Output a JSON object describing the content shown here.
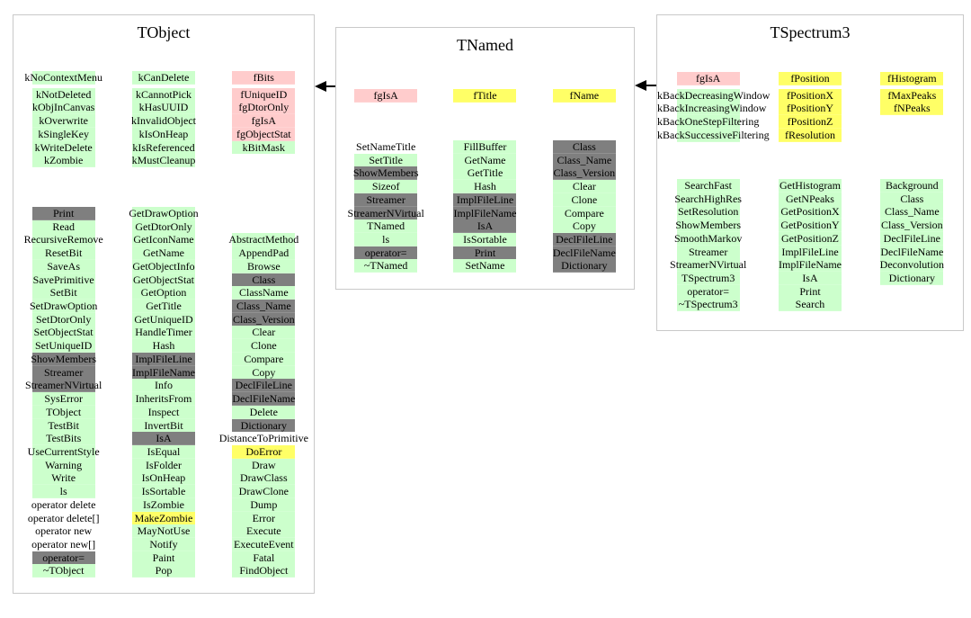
{
  "palette": {
    "g": "#ccffcc",
    "d": "#7f7f7f",
    "p": "#ffcccc",
    "y": "#ffff66",
    "w": "transparent"
  },
  "diagram": {
    "classes": [
      {
        "id": "tobject",
        "title": "TObject",
        "members_columns": [
          [
            [
              "kNoContextMenu",
              "g"
            ],
            [
              "kNotDeleted",
              "g"
            ],
            [
              "kObjInCanvas",
              "g"
            ],
            [
              "kOverwrite",
              "g"
            ],
            [
              "kSingleKey",
              "g"
            ],
            [
              "kWriteDelete",
              "g"
            ],
            [
              "kZombie",
              "g"
            ]
          ],
          [
            [
              "kCanDelete",
              "g"
            ],
            [
              "kCannotPick",
              "g"
            ],
            [
              "kHasUUID",
              "g"
            ],
            [
              "kInvalidObject",
              "g"
            ],
            [
              "kIsOnHeap",
              "g"
            ],
            [
              "kIsReferenced",
              "g"
            ],
            [
              "kMustCleanup",
              "g"
            ]
          ],
          [
            [
              "fBits",
              "p"
            ],
            [
              "fUniqueID",
              "p"
            ],
            [
              "fgDtorOnly",
              "p"
            ],
            [
              "fgIsA",
              "p"
            ],
            [
              "fgObjectStat",
              "p"
            ],
            [
              "kBitMask",
              "g"
            ]
          ]
        ],
        "methods_columns": [
          [
            [
              "Print",
              "d"
            ],
            [
              "Read",
              "g"
            ],
            [
              "RecursiveRemove",
              "g"
            ],
            [
              "ResetBit",
              "g"
            ],
            [
              "SaveAs",
              "g"
            ],
            [
              "SavePrimitive",
              "g"
            ],
            [
              "SetBit",
              "g"
            ],
            [
              "SetDrawOption",
              "g"
            ],
            [
              "SetDtorOnly",
              "g"
            ],
            [
              "SetObjectStat",
              "g"
            ],
            [
              "SetUniqueID",
              "g"
            ],
            [
              "ShowMembers",
              "d"
            ],
            [
              "Streamer",
              "d"
            ],
            [
              "StreamerNVirtual",
              "d"
            ],
            [
              "SysError",
              "g"
            ],
            [
              "TObject",
              "g"
            ],
            [
              "TestBit",
              "g"
            ],
            [
              "TestBits",
              "g"
            ],
            [
              "UseCurrentStyle",
              "g"
            ],
            [
              "Warning",
              "g"
            ],
            [
              "Write",
              "g"
            ],
            [
              "ls",
              "g"
            ],
            [
              "operator delete",
              "w"
            ],
            [
              "operator delete[]",
              "w"
            ],
            [
              "operator new",
              "w"
            ],
            [
              "operator new[]",
              "w"
            ],
            [
              "operator=",
              "d"
            ],
            [
              "~TObject",
              "g"
            ]
          ],
          [
            [
              "GetDrawOption",
              "g"
            ],
            [
              "GetDtorOnly",
              "g"
            ],
            [
              "GetIconName",
              "g"
            ],
            [
              "GetName",
              "g"
            ],
            [
              "GetObjectInfo",
              "g"
            ],
            [
              "GetObjectStat",
              "g"
            ],
            [
              "GetOption",
              "g"
            ],
            [
              "GetTitle",
              "g"
            ],
            [
              "GetUniqueID",
              "g"
            ],
            [
              "HandleTimer",
              "g"
            ],
            [
              "Hash",
              "g"
            ],
            [
              "ImplFileLine",
              "d"
            ],
            [
              "ImplFileName",
              "d"
            ],
            [
              "Info",
              "g"
            ],
            [
              "InheritsFrom",
              "g"
            ],
            [
              "Inspect",
              "g"
            ],
            [
              "InvertBit",
              "g"
            ],
            [
              "IsA",
              "d"
            ],
            [
              "IsEqual",
              "g"
            ],
            [
              "IsFolder",
              "g"
            ],
            [
              "IsOnHeap",
              "g"
            ],
            [
              "IsSortable",
              "g"
            ],
            [
              "IsZombie",
              "g"
            ],
            [
              "MakeZombie",
              "y"
            ],
            [
              "MayNotUse",
              "g"
            ],
            [
              "Notify",
              "g"
            ],
            [
              "Paint",
              "g"
            ],
            [
              "Pop",
              "g"
            ]
          ],
          [
            [
              "AbstractMethod",
              "g"
            ],
            [
              "AppendPad",
              "g"
            ],
            [
              "Browse",
              "g"
            ],
            [
              "Class",
              "d"
            ],
            [
              "ClassName",
              "g"
            ],
            [
              "Class_Name",
              "d"
            ],
            [
              "Class_Version",
              "d"
            ],
            [
              "Clear",
              "g"
            ],
            [
              "Clone",
              "g"
            ],
            [
              "Compare",
              "g"
            ],
            [
              "Copy",
              "g"
            ],
            [
              "DeclFileLine",
              "d"
            ],
            [
              "DeclFileName",
              "d"
            ],
            [
              "Delete",
              "g"
            ],
            [
              "Dictionary",
              "d"
            ],
            [
              "DistanceToPrimitive",
              "w"
            ],
            [
              "DoError",
              "y"
            ],
            [
              "Draw",
              "g"
            ],
            [
              "DrawClass",
              "g"
            ],
            [
              "DrawClone",
              "g"
            ],
            [
              "Dump",
              "g"
            ],
            [
              "Error",
              "g"
            ],
            [
              "Execute",
              "g"
            ],
            [
              "ExecuteEvent",
              "g"
            ],
            [
              "Fatal",
              "g"
            ],
            [
              "FindObject",
              "g"
            ]
          ]
        ]
      },
      {
        "id": "tnamed",
        "title": "TNamed",
        "members_columns": [
          [
            [
              "fgIsA",
              "p"
            ]
          ],
          [
            [
              "fTitle",
              "y"
            ]
          ],
          [
            [
              "fName",
              "y"
            ]
          ]
        ],
        "methods_columns": [
          [
            [
              "SetNameTitle",
              "w"
            ],
            [
              "SetTitle",
              "g"
            ],
            [
              "ShowMembers",
              "d"
            ],
            [
              "Sizeof",
              "g"
            ],
            [
              "Streamer",
              "d"
            ],
            [
              "StreamerNVirtual",
              "d"
            ],
            [
              "TNamed",
              "g"
            ],
            [
              "ls",
              "g"
            ],
            [
              "operator=",
              "d"
            ],
            [
              "~TNamed",
              "g"
            ]
          ],
          [
            [
              "FillBuffer",
              "g"
            ],
            [
              "GetName",
              "g"
            ],
            [
              "GetTitle",
              "g"
            ],
            [
              "Hash",
              "g"
            ],
            [
              "ImplFileLine",
              "d"
            ],
            [
              "ImplFileName",
              "d"
            ],
            [
              "IsA",
              "d"
            ],
            [
              "IsSortable",
              "g"
            ],
            [
              "Print",
              "d"
            ],
            [
              "SetName",
              "g"
            ]
          ],
          [
            [
              "Class",
              "d"
            ],
            [
              "Class_Name",
              "d"
            ],
            [
              "Class_Version",
              "d"
            ],
            [
              "Clear",
              "g"
            ],
            [
              "Clone",
              "g"
            ],
            [
              "Compare",
              "g"
            ],
            [
              "Copy",
              "g"
            ],
            [
              "DeclFileLine",
              "d"
            ],
            [
              "DeclFileName",
              "d"
            ],
            [
              "Dictionary",
              "d"
            ]
          ]
        ]
      },
      {
        "id": "tspectrum3",
        "title": "TSpectrum3",
        "members_columns": [
          [
            [
              "fgIsA",
              "p"
            ],
            [
              "kBackDecreasingWindow",
              "g"
            ],
            [
              "kBackIncreasingWindow",
              "g"
            ],
            [
              "kBackOneStepFiltering",
              "g"
            ],
            [
              "kBackSuccessiveFiltering",
              "g"
            ]
          ],
          [
            [
              "fPosition",
              "y"
            ],
            [
              "fPositionX",
              "y"
            ],
            [
              "fPositionY",
              "y"
            ],
            [
              "fPositionZ",
              "y"
            ],
            [
              "fResolution",
              "y"
            ]
          ],
          [
            [
              "fHistogram",
              "y"
            ],
            [
              "fMaxPeaks",
              "y"
            ],
            [
              "fNPeaks",
              "y"
            ]
          ]
        ],
        "methods_columns": [
          [
            [
              "SearchFast",
              "g"
            ],
            [
              "SearchHighRes",
              "g"
            ],
            [
              "SetResolution",
              "g"
            ],
            [
              "ShowMembers",
              "g"
            ],
            [
              "SmoothMarkov",
              "g"
            ],
            [
              "Streamer",
              "g"
            ],
            [
              "StreamerNVirtual",
              "g"
            ],
            [
              "TSpectrum3",
              "g"
            ],
            [
              "operator=",
              "g"
            ],
            [
              "~TSpectrum3",
              "g"
            ]
          ],
          [
            [
              "GetHistogram",
              "g"
            ],
            [
              "GetNPeaks",
              "g"
            ],
            [
              "GetPositionX",
              "g"
            ],
            [
              "GetPositionY",
              "g"
            ],
            [
              "GetPositionZ",
              "g"
            ],
            [
              "ImplFileLine",
              "g"
            ],
            [
              "ImplFileName",
              "g"
            ],
            [
              "IsA",
              "g"
            ],
            [
              "Print",
              "g"
            ],
            [
              "Search",
              "g"
            ]
          ],
          [
            [
              "Background",
              "g"
            ],
            [
              "Class",
              "g"
            ],
            [
              "Class_Name",
              "g"
            ],
            [
              "Class_Version",
              "g"
            ],
            [
              "DeclFileLine",
              "g"
            ],
            [
              "DeclFileName",
              "g"
            ],
            [
              "Deconvolution",
              "g"
            ],
            [
              "Dictionary",
              "g"
            ]
          ]
        ]
      }
    ],
    "arrows": [
      {
        "name": "tnamed-inherits-tobject",
        "from": "TNamed",
        "to": "TObject"
      },
      {
        "name": "tspectrum3-inherits-tnamed",
        "from": "TSpectrum3",
        "to": "TNamed"
      }
    ]
  }
}
